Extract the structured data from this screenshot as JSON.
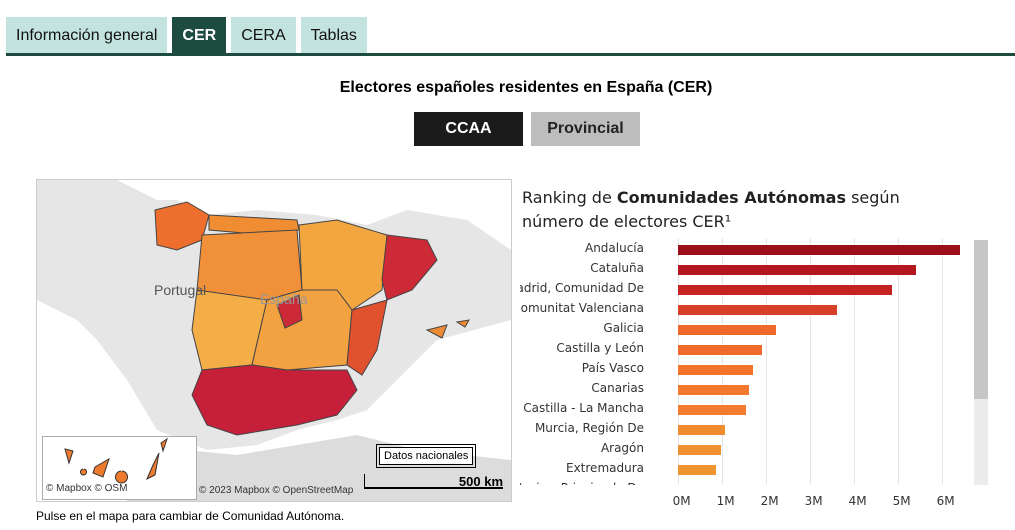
{
  "tabs": [
    {
      "label": "Información general",
      "active": false
    },
    {
      "label": "CER",
      "active": true
    },
    {
      "label": "CERA",
      "active": false
    },
    {
      "label": "Tablas",
      "active": false
    }
  ],
  "page_title": "Electores españoles residentes en España (CER)",
  "toggle": {
    "ccaa": "CCAA",
    "provincial": "Provincial",
    "selected": "CCAA"
  },
  "map": {
    "labels": {
      "portugal": "Portugal",
      "espana": "España"
    },
    "inset_attribution": "© Mapbox  © OSM",
    "attribution": "© 2023 Mapbox  © OpenStreetMap",
    "national_button": "Datos nacionales",
    "scale": "500 km",
    "hint": "Pulse en el mapa para cambiar de Comunidad Autónoma."
  },
  "chart_title": {
    "pre": "Ranking de ",
    "bold": "Comunidades Autónomas",
    "post": " según número de electores CER¹"
  },
  "chart_data": {
    "type": "bar",
    "orientation": "horizontal",
    "categories": [
      "Andalucía",
      "Cataluña",
      "Madrid, Comunidad De",
      "Comunitat Valenciana",
      "Galicia",
      "Castilla y León",
      "País Vasco",
      "Canarias",
      "Castilla - La Mancha",
      "Murcia, Región De",
      "Aragón",
      "Extremadura",
      "Asturias, Principado De"
    ],
    "values": [
      6410000,
      5420000,
      4860000,
      3610000,
      2220000,
      1920000,
      1700000,
      1610000,
      1540000,
      1060000,
      970000,
      860000,
      840000
    ],
    "colors": [
      "#9b0f1c",
      "#b3171f",
      "#c42223",
      "#d8402a",
      "#ee6a2c",
      "#f06b2b",
      "#f2742d",
      "#f1782e",
      "#f17c2f",
      "#ef8c30",
      "#ef9131",
      "#ee9431",
      "#ee9631"
    ],
    "xticks": [
      "0M",
      "1M",
      "2M",
      "3M",
      "4M",
      "5M",
      "6M"
    ],
    "xlim": [
      0,
      6500000
    ],
    "grid": true
  }
}
